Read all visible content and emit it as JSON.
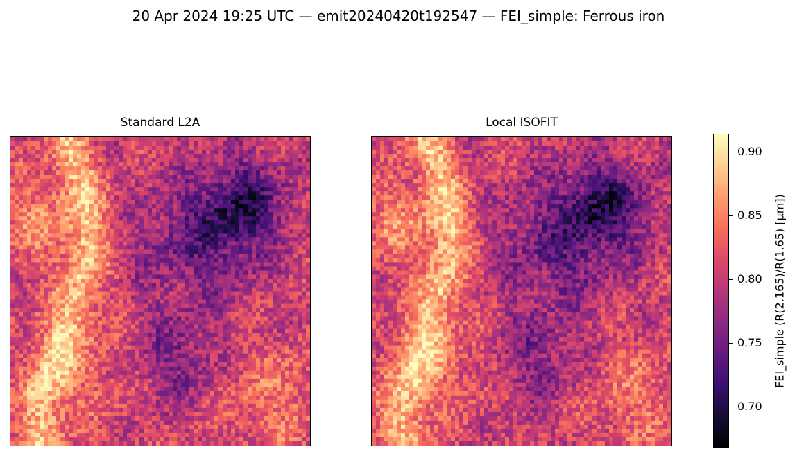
{
  "chart_data": {
    "type": "heatmap",
    "title": "20 Apr 2024 19:25 UTC — emit20240420t192547 — FEI_simple: Ferrous iron",
    "panels": [
      {
        "title": "Standard L2A"
      },
      {
        "title": "Local ISOFIT"
      }
    ],
    "colormap": "magma",
    "colorbar": {
      "label": "FEI_simple  (R(2.165)/R(1.65)  [µm])",
      "vmin": 0.668,
      "vmax": 0.914,
      "ticks": [
        0.7,
        0.75,
        0.8,
        0.85,
        0.9
      ],
      "tick_labels": [
        "0.70",
        "0.75",
        "0.80",
        "0.85",
        "0.90"
      ]
    },
    "axes_visible": false
  }
}
